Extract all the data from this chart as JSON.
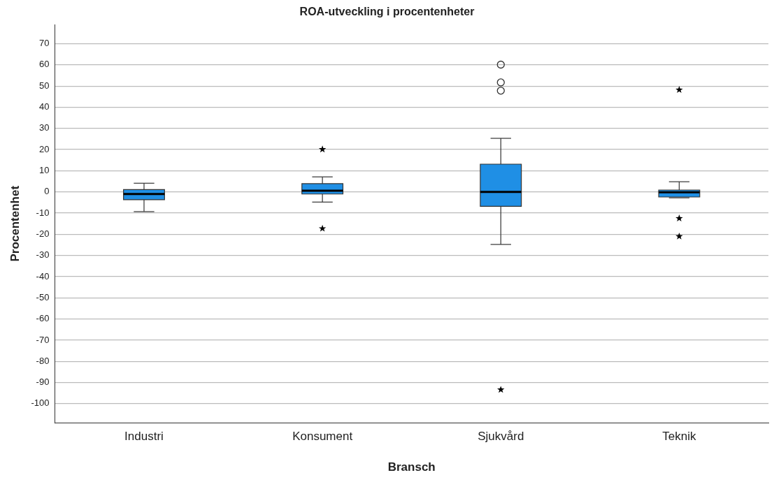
{
  "chart_data": {
    "type": "box",
    "title": "ROA-utveckling i procentenheter",
    "xlabel": "Bransch",
    "ylabel": "Procentenhet",
    "categories": [
      "Industri",
      "Konsument",
      "Sjukvård",
      "Teknik"
    ],
    "ylim": [
      -109,
      79
    ],
    "yticks": [
      -100,
      -90,
      -80,
      -70,
      -60,
      -50,
      -40,
      -30,
      -20,
      -10,
      0,
      10,
      20,
      30,
      40,
      50,
      60,
      70
    ],
    "grid": "y",
    "series": [
      {
        "type": "box",
        "color": "#1f8fe5",
        "marker": "circle",
        "boxes": [
          {
            "low": -9.3,
            "q1": -3.7,
            "median": -1,
            "q3": 1.1,
            "high": 4.1
          },
          {
            "low": -4.8,
            "q1": -1,
            "median": 0.6,
            "q3": 3.9,
            "high": 7.1
          },
          {
            "low": -24.8,
            "q1": -6.8,
            "median": 0,
            "q3": 13.1,
            "high": 25.3,
            "outliers": [
              60.1,
              51.7,
              47.8
            ]
          },
          {
            "low": -2.8,
            "q1": -2.4,
            "median": -0.2,
            "q3": 0.9,
            "high": 4.8
          }
        ]
      },
      {
        "type": "scatter",
        "color": "#000000",
        "marker": "star",
        "x": [
          "Konsument",
          "Konsument",
          "Sjukvård",
          "Teknik",
          "Teknik",
          "Teknik"
        ],
        "values": [
          20.1,
          -17.3,
          -93.4,
          48.2,
          -12.5,
          -21
        ]
      }
    ]
  }
}
